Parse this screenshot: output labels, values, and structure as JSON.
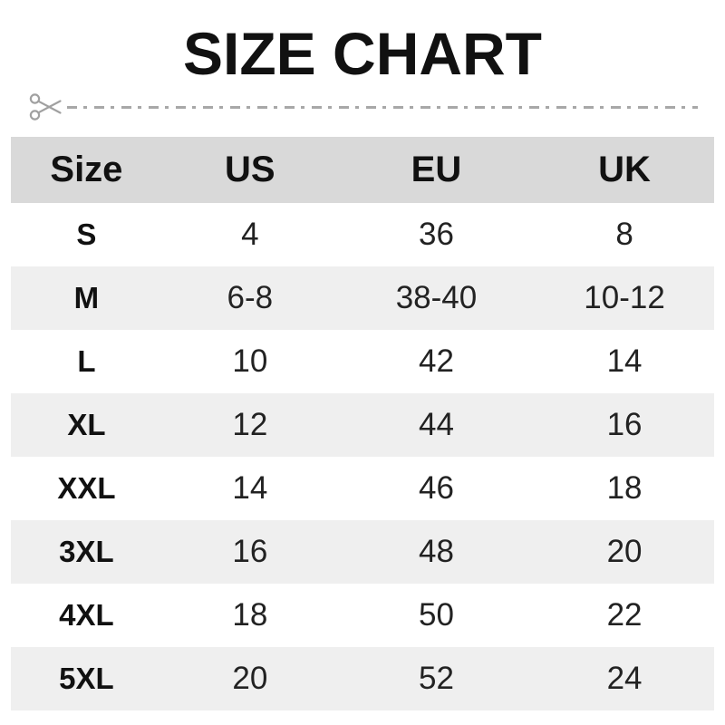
{
  "title": "SIZE CHART",
  "cut_line": {
    "icon": "scissors-icon"
  },
  "table": {
    "headers": [
      "Size",
      "US",
      "EU",
      "UK"
    ],
    "rows": [
      [
        "S",
        "4",
        "36",
        "8"
      ],
      [
        "M",
        "6-8",
        "38-40",
        "10-12"
      ],
      [
        "L",
        "10",
        "42",
        "14"
      ],
      [
        "XL",
        "12",
        "44",
        "16"
      ],
      [
        "XXL",
        "14",
        "46",
        "18"
      ],
      [
        "3XL",
        "16",
        "48",
        "20"
      ],
      [
        "4XL",
        "18",
        "50",
        "22"
      ],
      [
        "5XL",
        "20",
        "52",
        "24"
      ]
    ]
  },
  "colors": {
    "header_bg": "#d9d9d9",
    "alt_row_bg": "#efefef",
    "title_text": "#111111",
    "value_text": "#222222",
    "cut_line": "#a8a8a8"
  }
}
